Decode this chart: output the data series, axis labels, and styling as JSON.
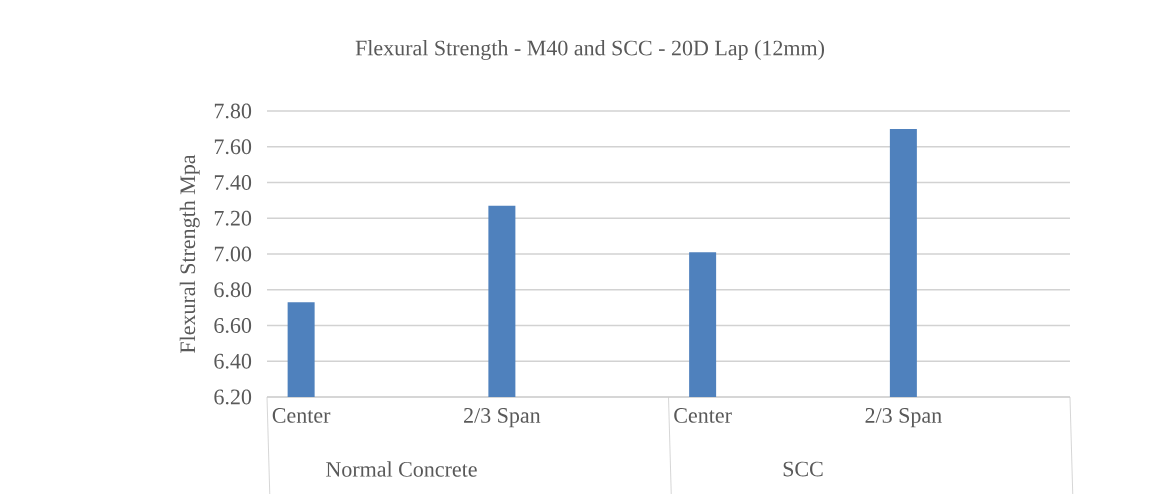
{
  "chart_data": {
    "type": "bar",
    "title": "Flexural Strength - M40 and SCC - 20D Lap (12mm)",
    "ylabel": "Flexural Strength  Mpa",
    "categories": [
      "Center",
      "2/3 Span",
      "Center",
      "2/3 Span"
    ],
    "values": [
      6.73,
      7.27,
      7.01,
      7.7
    ],
    "color": "#4f81bd",
    "ylim": [
      6.2,
      7.8
    ],
    "yticks": [
      {
        "value": 6.2,
        "label": "6.20"
      },
      {
        "value": 6.4,
        "label": "6.40"
      },
      {
        "value": 6.6,
        "label": "6.60"
      },
      {
        "value": 6.8,
        "label": "6.80"
      },
      {
        "value": 7.0,
        "label": "7.00"
      },
      {
        "value": 7.2,
        "label": "7.20"
      },
      {
        "value": 7.4,
        "label": "7.40"
      },
      {
        "value": 7.6,
        "label": "7.60"
      },
      {
        "value": 7.8,
        "label": "7.80"
      }
    ],
    "grid": "y",
    "annotations": [
      "Normal Concrete",
      "SCC"
    ]
  }
}
